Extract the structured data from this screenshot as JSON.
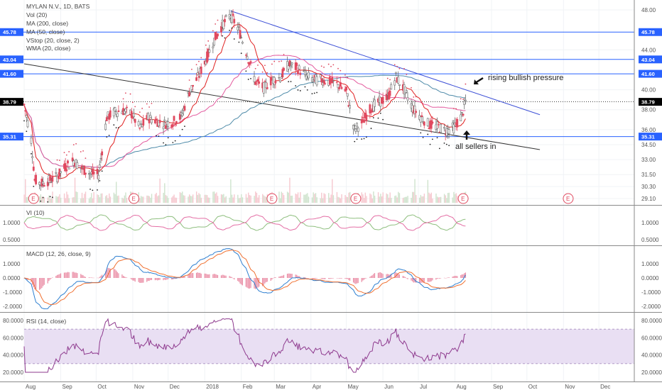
{
  "chart_data": {
    "type": "candlestick",
    "title": "MYLAN N.V., 1D, BATS",
    "indicators": [
      "Vol (20)",
      "MA (200, close)",
      "MA (50, close)",
      "VStop (20, close, 2)",
      "WMA (20, close)"
    ],
    "price_axis_ticks": [
      "48.00",
      "45.78",
      "44.00",
      "43.04",
      "41.60",
      "40.00",
      "38.79",
      "38.00",
      "36.00",
      "35.31",
      "34.50",
      "33.00",
      "31.50",
      "30.30",
      "29.10"
    ],
    "price_levels": [
      {
        "value": 45.78,
        "label": "45.78",
        "color": "#2962ff"
      },
      {
        "value": 43.04,
        "label": "43.04",
        "color": "#2962ff"
      },
      {
        "value": 41.6,
        "label": "41.60",
        "color": "#2962ff"
      },
      {
        "value": 35.31,
        "label": "35.31",
        "color": "#2962ff"
      },
      {
        "value": 38.79,
        "label": "38.79",
        "color": "#000000"
      }
    ],
    "x_labels": [
      "Aug",
      "Sep",
      "Oct",
      "Nov",
      "Dec",
      "2018",
      "Feb",
      "Mar",
      "Apr",
      "May",
      "Jun",
      "Jul",
      "Aug",
      "Sep",
      "Oct",
      "Nov",
      "Dec"
    ],
    "x_range": [
      "2017-08-01",
      "2018-12-31"
    ],
    "trendlines": [
      {
        "name": "descending resistance",
        "from": [
          "2018-01-23",
          47.9
        ],
        "to": [
          "2018-10-12",
          37.5
        ],
        "color": "#3c4fd6"
      },
      {
        "name": "descending support",
        "from": [
          "2017-08-01",
          42.6
        ],
        "to": [
          "2018-10-12",
          34.0
        ],
        "color": "#333333"
      }
    ],
    "earnings_markers": [
      "2017-08-09",
      "2017-11-02",
      "2018-02-27",
      "2018-05-09",
      "2018-08-08",
      "2018-11-05"
    ],
    "annotations": [
      "rising bullish pressure",
      "all sellers in"
    ],
    "approx_closes": [
      [
        "2017-08-01",
        38.5
      ],
      [
        "2017-08-07",
        35.0
      ],
      [
        "2017-08-10",
        31.0
      ],
      [
        "2017-08-15",
        30.6
      ],
      [
        "2017-08-22",
        30.9
      ],
      [
        "2017-08-29",
        31.3
      ],
      [
        "2017-09-05",
        32.3
      ],
      [
        "2017-09-12",
        32.9
      ],
      [
        "2017-09-19",
        32.1
      ],
      [
        "2017-09-26",
        31.6
      ],
      [
        "2017-10-03",
        31.5
      ],
      [
        "2017-10-10",
        37.2
      ],
      [
        "2017-10-17",
        37.8
      ],
      [
        "2017-10-24",
        37.9
      ],
      [
        "2017-10-31",
        37.6
      ],
      [
        "2017-11-07",
        36.1
      ],
      [
        "2017-11-14",
        37.2
      ],
      [
        "2017-11-21",
        36.9
      ],
      [
        "2017-11-28",
        36.6
      ],
      [
        "2017-12-05",
        36.8
      ],
      [
        "2017-12-12",
        37.3
      ],
      [
        "2017-12-19",
        39.8
      ],
      [
        "2017-12-26",
        41.2
      ],
      [
        "2018-01-02",
        43.0
      ],
      [
        "2018-01-09",
        45.0
      ],
      [
        "2018-01-16",
        46.5
      ],
      [
        "2018-01-23",
        47.5
      ],
      [
        "2018-01-30",
        46.0
      ],
      [
        "2018-02-06",
        43.5
      ],
      [
        "2018-02-13",
        40.8
      ],
      [
        "2018-02-20",
        40.2
      ],
      [
        "2018-02-27",
        41.0
      ],
      [
        "2018-03-06",
        41.2
      ],
      [
        "2018-03-13",
        42.5
      ],
      [
        "2018-03-20",
        42.2
      ],
      [
        "2018-03-27",
        41.5
      ],
      [
        "2018-04-03",
        41.0
      ],
      [
        "2018-04-10",
        41.0
      ],
      [
        "2018-04-17",
        40.8
      ],
      [
        "2018-04-24",
        40.5
      ],
      [
        "2018-05-01",
        39.8
      ],
      [
        "2018-05-08",
        36.0
      ],
      [
        "2018-05-15",
        36.8
      ],
      [
        "2018-05-22",
        38.2
      ],
      [
        "2018-05-29",
        38.8
      ],
      [
        "2018-06-05",
        39.2
      ],
      [
        "2018-06-12",
        41.3
      ],
      [
        "2018-06-19",
        40.0
      ],
      [
        "2018-06-26",
        38.2
      ],
      [
        "2018-07-03",
        37.3
      ],
      [
        "2018-07-10",
        36.5
      ],
      [
        "2018-07-17",
        36.3
      ],
      [
        "2018-07-24",
        35.9
      ],
      [
        "2018-07-31",
        36.2
      ],
      [
        "2018-08-07",
        37.4
      ],
      [
        "2018-08-10",
        38.8
      ]
    ],
    "panels": [
      {
        "name": "VI (10)",
        "ticks": [
          "1.0000",
          "0.5000"
        ],
        "series": [
          "VI+",
          "VI-"
        ]
      },
      {
        "name": "MACD (12, 26, close, 9)",
        "ticks": [
          "1.0000",
          "0.0000",
          "-1.0000",
          "-2.0000"
        ],
        "series": [
          "MACD",
          "Signal",
          "Histogram"
        ]
      },
      {
        "name": "RSI (14, close)",
        "ticks": [
          "80.0000",
          "60.0000",
          "40.0000",
          "20.0000"
        ],
        "band": [
          30,
          70
        ]
      }
    ]
  },
  "colors": {
    "resistance": "#3c4fd6",
    "support": "#333333",
    "level": "#2962ff",
    "up": "#6b6b6b",
    "down": "#e0495f",
    "ma200": "#4d8aa8",
    "ma50": "#e35a9e",
    "wma": "#e02020",
    "rsi": "#8e3a8e",
    "rsi_band": "#e9dff3",
    "macd": "#2e7fd0",
    "signal": "#f07030",
    "vi_plus": "#8fbf7f",
    "vi_minus": "#e46fa5"
  }
}
